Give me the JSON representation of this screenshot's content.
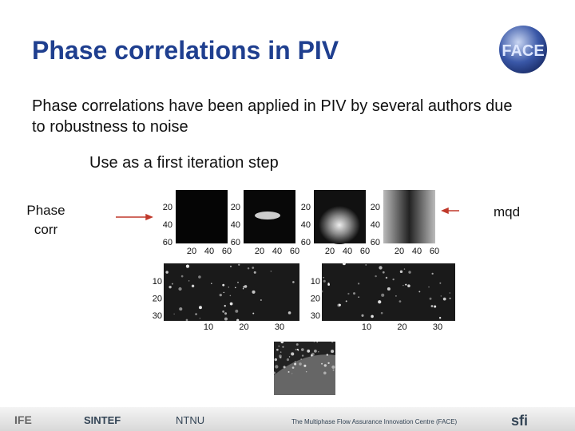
{
  "title": "Phase correlations in PIV",
  "logo": "FACE",
  "body": {
    "paragraph": "Phase correlations have been applied in PIV by several authors due to robustness to noise",
    "sub": "Use as a first iteration step"
  },
  "labels": {
    "left": "Phase corr",
    "right": "mqd"
  },
  "top_plots": [
    {
      "yticks": [
        20,
        40,
        60
      ],
      "xticks": [
        20,
        40,
        60
      ]
    },
    {
      "yticks": [
        20,
        40,
        60
      ],
      "xticks": [
        20,
        40,
        60
      ]
    },
    {
      "yticks": [
        20,
        40,
        60
      ],
      "xticks": [
        20,
        40,
        60
      ]
    },
    {
      "yticks": [
        20,
        40,
        60
      ],
      "xticks": [
        20,
        40,
        60
      ]
    }
  ],
  "bottom_plots": [
    {
      "yticks": [
        10,
        20,
        30
      ],
      "xticks": [
        10,
        20,
        30
      ]
    },
    {
      "yticks": [
        10,
        20,
        30
      ],
      "xticks": [
        10,
        20,
        30
      ]
    }
  ],
  "footer": {
    "logos": [
      "IFE",
      "SINTEF",
      "NTNU"
    ],
    "centre": "The Multiphase Flow Assurance Innovation Centre (FACE)",
    "sfi": "sfi"
  }
}
